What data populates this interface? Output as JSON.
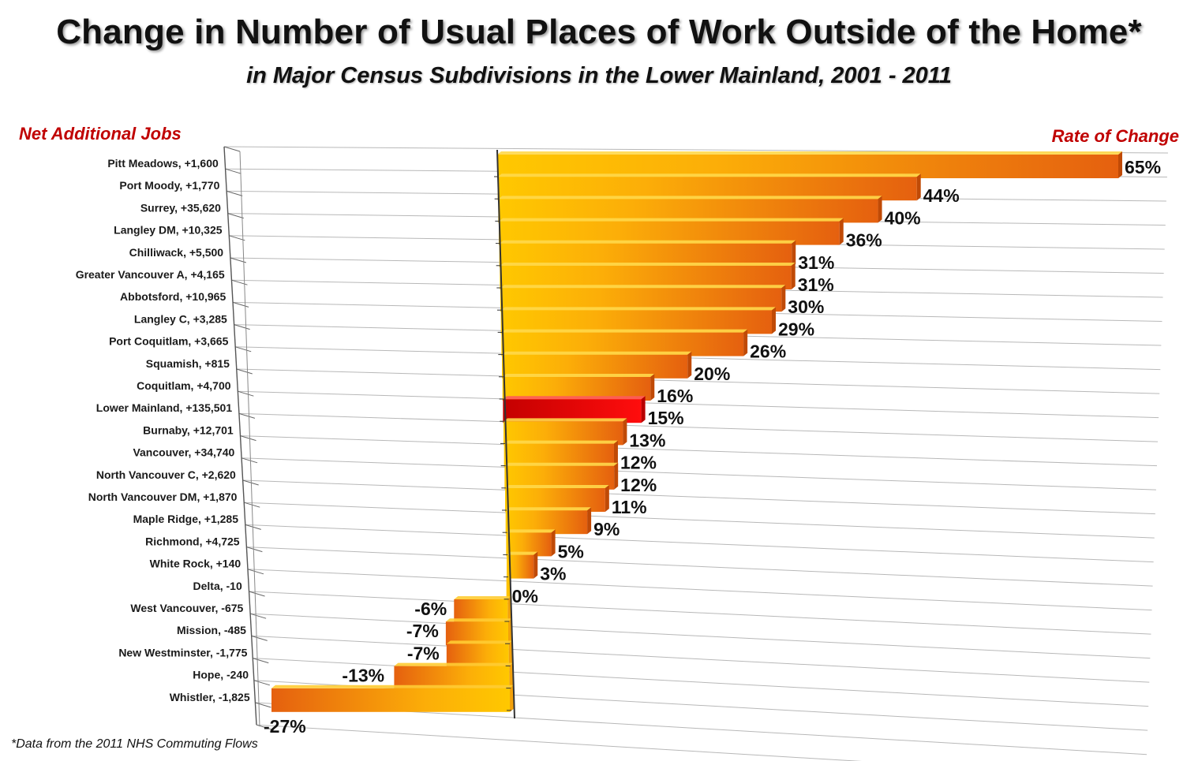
{
  "title": "Change in Number of Usual Places of Work Outside of the Home*",
  "subtitle": "in Major Census Subdivisions in the Lower Mainland, 2001 - 2011",
  "left_heading": "Net Additional Jobs",
  "right_heading": "Rate of Change",
  "footnote": "*Data from the 2011 NHS Commuting Flows",
  "colors": {
    "bar_light": "#ffc200",
    "bar_dark": "#e8620c",
    "highlight": "#ee0000",
    "highlight_dark": "#b80000",
    "heading": "#c00000"
  },
  "chart_data": {
    "type": "bar",
    "orientation": "horizontal",
    "title": "Change in Number of Usual Places of Work Outside of the Home*",
    "subtitle": "in Major Census Subdivisions in the Lower Mainland, 2001 - 2011",
    "xlabel": "Rate of Change",
    "ylabel": "Net Additional Jobs",
    "xlim": [
      -27,
      65
    ],
    "highlight_category": "Lower Mainland, +135,501",
    "categories": [
      "Pitt Meadows, +1,600",
      "Port Moody, +1,770",
      "Surrey, +35,620",
      "Langley DM, +10,325",
      "Chilliwack, +5,500",
      "Greater Vancouver A, +4,165",
      "Abbotsford, +10,965",
      "Langley C, +3,285",
      "Port Coquitlam, +3,665",
      "Squamish, +815",
      "Coquitlam, +4,700",
      "Lower Mainland, +135,501",
      "Burnaby, +12,701",
      "Vancouver, +34,740",
      "North Vancouver C, +2,620",
      "North Vancouver DM, +1,870",
      "Maple Ridge, +1,285",
      "Richmond, +4,725",
      "White Rock, +140",
      "Delta, -10",
      "West Vancouver, -675",
      "Mission, -485",
      "New Westminster, -1,775",
      "Hope, -240",
      "Whistler, -1,825"
    ],
    "values": [
      65,
      44,
      40,
      36,
      31,
      31,
      30,
      29,
      26,
      20,
      16,
      15,
      13,
      12,
      12,
      11,
      9,
      5,
      3,
      0,
      -6,
      -7,
      -7,
      -13,
      -27
    ],
    "value_labels": [
      "65%",
      "44%",
      "40%",
      "36%",
      "31%",
      "31%",
      "30%",
      "29%",
      "26%",
      "20%",
      "16%",
      "15%",
      "13%",
      "12%",
      "12%",
      "11%",
      "9%",
      "5%",
      "3%",
      "0%",
      "-6%",
      "-7%",
      "-7%",
      "-13%",
      "-27%"
    ]
  }
}
